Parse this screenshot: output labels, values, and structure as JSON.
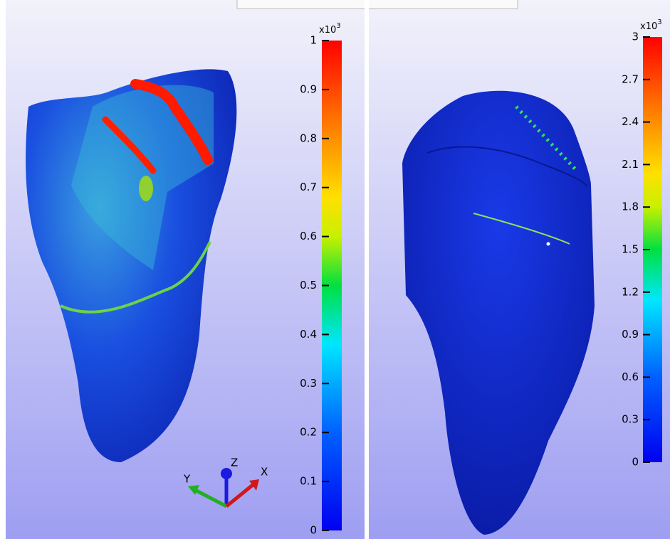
{
  "panels": [
    {
      "colorbar": {
        "multiplier": "x10",
        "exponent": "3",
        "ticks": [
          "0",
          "0.1",
          "0.2",
          "0.3",
          "0.4",
          "0.5",
          "0.6",
          "0.7",
          "0.8",
          "0.9",
          "1"
        ]
      }
    },
    {
      "colorbar": {
        "multiplier": "x10",
        "exponent": "3",
        "ticks": [
          "0",
          "0.3",
          "0.6",
          "0.9",
          "1.2",
          "1.5",
          "1.8",
          "2.1",
          "2.4",
          "2.7",
          "3"
        ]
      }
    }
  ],
  "axes_triad": {
    "z": "Z",
    "y": "Y",
    "x": "X"
  }
}
